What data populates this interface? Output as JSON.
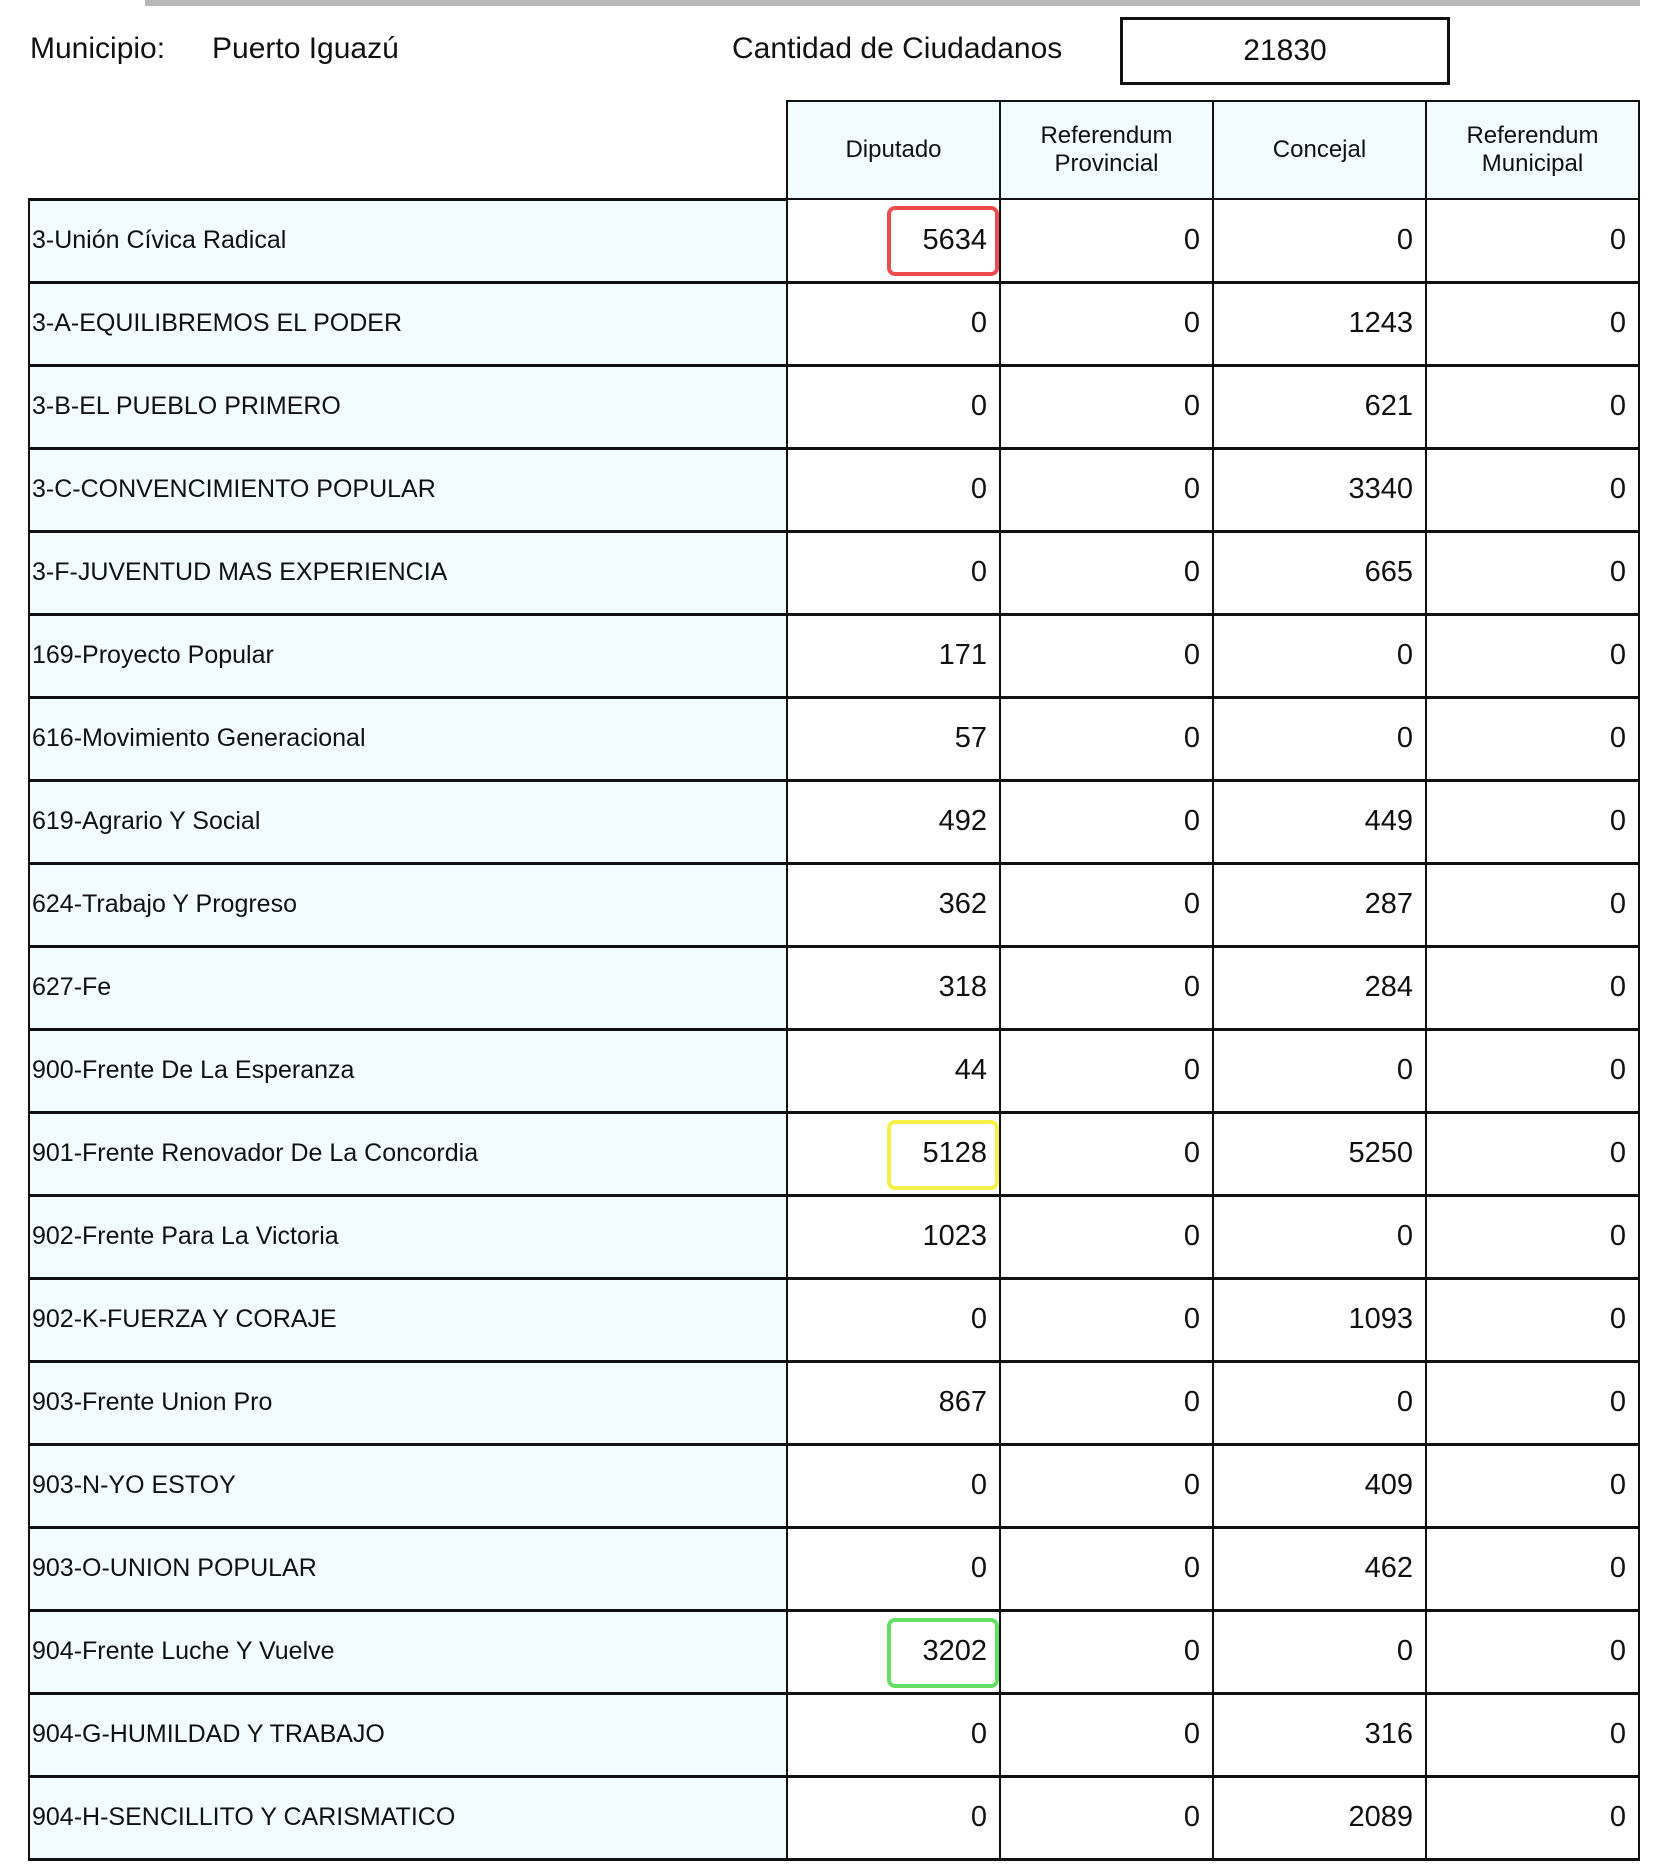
{
  "header": {
    "municipio_label": "Municipio:",
    "municipio_value": "Puerto Iguazú",
    "ciudadanos_label": "Cantidad de Ciudadanos",
    "ciudadanos_value": "21830"
  },
  "table": {
    "columns": [
      "Diputado",
      "Referendum Provincial",
      "Concejal",
      "Referendum Municipal"
    ],
    "rows": [
      {
        "name": "3-Unión Cívica Radical",
        "values": [
          "5634",
          "0",
          "0",
          "0"
        ],
        "highlight": "#e82020"
      },
      {
        "name": "3-A-EQUILIBREMOS EL PODER",
        "values": [
          "0",
          "0",
          "1243",
          "0"
        ]
      },
      {
        "name": "3-B-EL PUEBLO PRIMERO",
        "values": [
          "0",
          "0",
          "621",
          "0"
        ]
      },
      {
        "name": "3-C-CONVENCIMIENTO POPULAR",
        "values": [
          "0",
          "0",
          "3340",
          "0"
        ]
      },
      {
        "name": "3-F-JUVENTUD MAS EXPERIENCIA",
        "values": [
          "0",
          "0",
          "665",
          "0"
        ]
      },
      {
        "name": "169-Proyecto Popular",
        "values": [
          "171",
          "0",
          "0",
          "0"
        ]
      },
      {
        "name": "616-Movimiento Generacional",
        "values": [
          "57",
          "0",
          "0",
          "0"
        ]
      },
      {
        "name": "619-Agrario Y Social",
        "values": [
          "492",
          "0",
          "449",
          "0"
        ]
      },
      {
        "name": "624-Trabajo Y Progreso",
        "values": [
          "362",
          "0",
          "287",
          "0"
        ]
      },
      {
        "name": "627-Fe",
        "values": [
          "318",
          "0",
          "284",
          "0"
        ]
      },
      {
        "name": "900-Frente De La Esperanza",
        "values": [
          "44",
          "0",
          "0",
          "0"
        ]
      },
      {
        "name": "901-Frente Renovador De La Concordia",
        "values": [
          "5128",
          "0",
          "5250",
          "0"
        ],
        "highlight": "#f2ee1a"
      },
      {
        "name": "902-Frente Para La Victoria",
        "values": [
          "1023",
          "0",
          "0",
          "0"
        ]
      },
      {
        "name": "902-K-FUERZA Y CORAJE",
        "values": [
          "0",
          "0",
          "1093",
          "0"
        ]
      },
      {
        "name": "903-Frente Union Pro",
        "values": [
          "867",
          "0",
          "0",
          "0"
        ]
      },
      {
        "name": "903-N-YO ESTOY",
        "values": [
          "0",
          "0",
          "409",
          "0"
        ]
      },
      {
        "name": "903-O-UNION POPULAR",
        "values": [
          "0",
          "0",
          "462",
          "0"
        ]
      },
      {
        "name": "904-Frente Luche Y Vuelve",
        "values": [
          "3202",
          "0",
          "0",
          "0"
        ],
        "highlight": "#3ad83a"
      },
      {
        "name": "904-G-HUMILDAD Y TRABAJO",
        "values": [
          "0",
          "0",
          "316",
          "0"
        ]
      },
      {
        "name": "904-H-SENCILLITO Y CARISMATICO",
        "values": [
          "0",
          "0",
          "2089",
          "0"
        ]
      }
    ]
  }
}
